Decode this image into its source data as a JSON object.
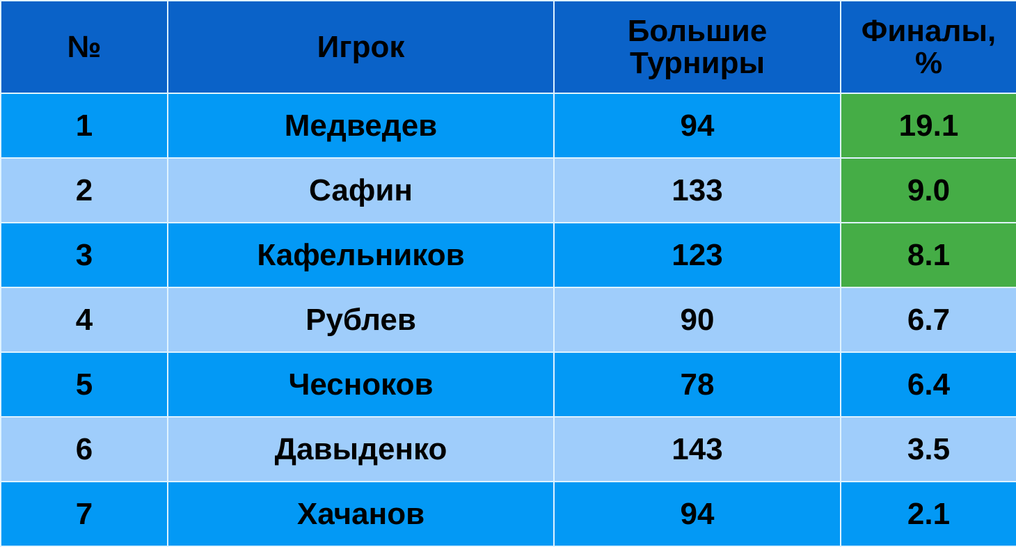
{
  "chart_data": {
    "type": "table",
    "columns": [
      "№",
      "Игрок",
      "Большие Турниры",
      "Финалы, %"
    ],
    "rows": [
      {
        "n": "1",
        "player": "Медведев",
        "tournaments": "94",
        "finals": "19.1",
        "highlight": true
      },
      {
        "n": "2",
        "player": "Сафин",
        "tournaments": "133",
        "finals": "9.0",
        "highlight": true
      },
      {
        "n": "3",
        "player": "Кафельников",
        "tournaments": "123",
        "finals": "8.1",
        "highlight": true
      },
      {
        "n": "4",
        "player": "Рублев",
        "tournaments": "90",
        "finals": "6.7",
        "highlight": false
      },
      {
        "n": "5",
        "player": "Чесноков",
        "tournaments": "78",
        "finals": "6.4",
        "highlight": false
      },
      {
        "n": "6",
        "player": "Давыденко",
        "tournaments": "143",
        "finals": "3.5",
        "highlight": false
      },
      {
        "n": "7",
        "player": "Хачанов",
        "tournaments": "94",
        "finals": "2.1",
        "highlight": false
      }
    ],
    "colors": {
      "header": "#0a62c8",
      "row_dark": "#0399f5",
      "row_light": "#9fcdfb",
      "highlight": "#45ad46"
    }
  }
}
